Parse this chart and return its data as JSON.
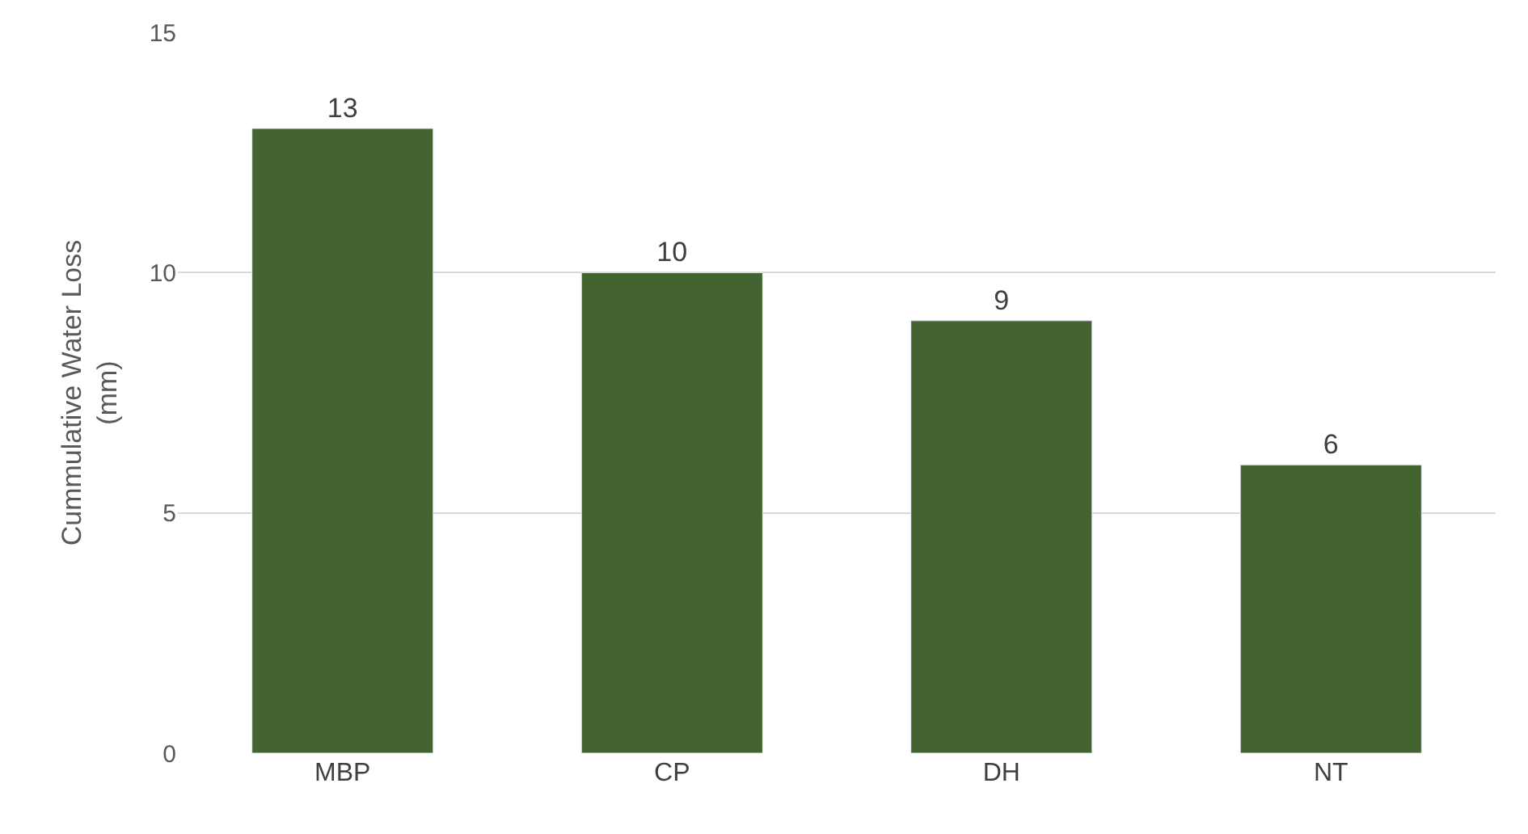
{
  "chart_data": {
    "type": "bar",
    "ylabel": "Cummulative Water Loss\n(mm)",
    "categories": [
      "MBP",
      "CP",
      "DH",
      "NT"
    ],
    "values": [
      13,
      10,
      9,
      6
    ],
    "color": "#436330",
    "ylim": [
      0,
      15
    ],
    "yticks": [
      0,
      5,
      10,
      15
    ],
    "grid": "y",
    "data_labels": true
  }
}
